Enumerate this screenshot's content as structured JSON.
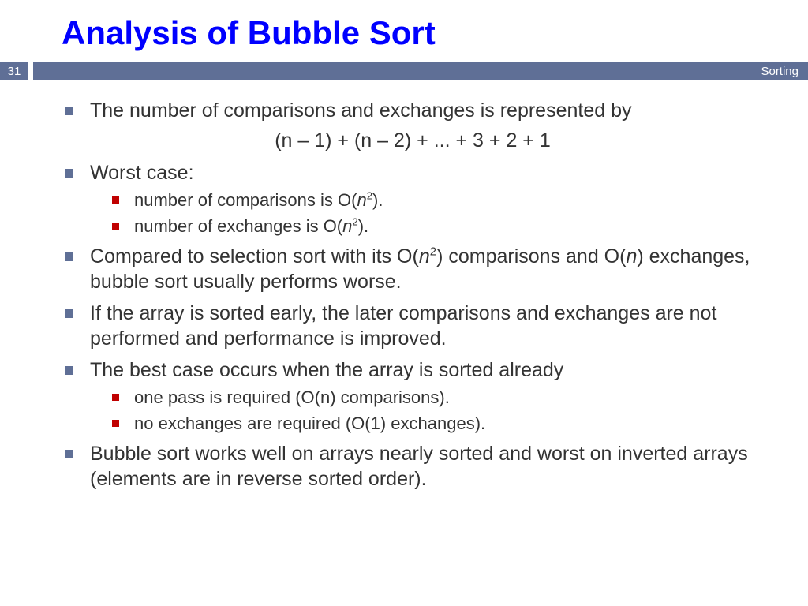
{
  "title": "Analysis of Bubble Sort",
  "page_number": "31",
  "section_label": "Sorting",
  "colors": {
    "title": "#0000ff",
    "bar_bg": "#5f6f96",
    "bar_text": "#ffffff",
    "level1_bullet": "#5f6f96",
    "level2_bullet": "#c00000",
    "body_text": "#333333",
    "background": "#ffffff"
  },
  "typography": {
    "title_fontsize_pt": 32,
    "body_fontsize_pt": 19,
    "sub_fontsize_pt": 17,
    "font_family": "Arial"
  },
  "bullets": {
    "item0": "The number of comparisons and exchanges is represented by",
    "formula": "(n – 1) + (n – 2) + ... + 3 + 2 + 1",
    "item1": "Worst case:",
    "item1_sub0_a": "number of comparisons is O(",
    "item1_sub0_n": "n",
    "item1_sub0_exp": "2",
    "item1_sub0_b": ").",
    "item1_sub1_a": "number of exchanges is O(",
    "item1_sub1_n": "n",
    "item1_sub1_exp": "2",
    "item1_sub1_b": ").",
    "item2_a": "Compared to selection sort with its O(",
    "item2_n1": "n",
    "item2_exp": "2",
    "item2_b": ") comparisons and O(",
    "item2_n2": "n",
    "item2_c": ") exchanges, bubble sort usually performs worse.",
    "item3": "If the array is sorted early, the later comparisons and exchanges are not performed and performance is improved.",
    "item4": "The best case occurs when the array is sorted already",
    "item4_sub0": "one pass is required (O(n) comparisons).",
    "item4_sub1": "no exchanges are required (O(1) exchanges).",
    "item5": "Bubble sort works well on arrays nearly sorted and worst on inverted arrays (elements are in reverse sorted order)."
  }
}
